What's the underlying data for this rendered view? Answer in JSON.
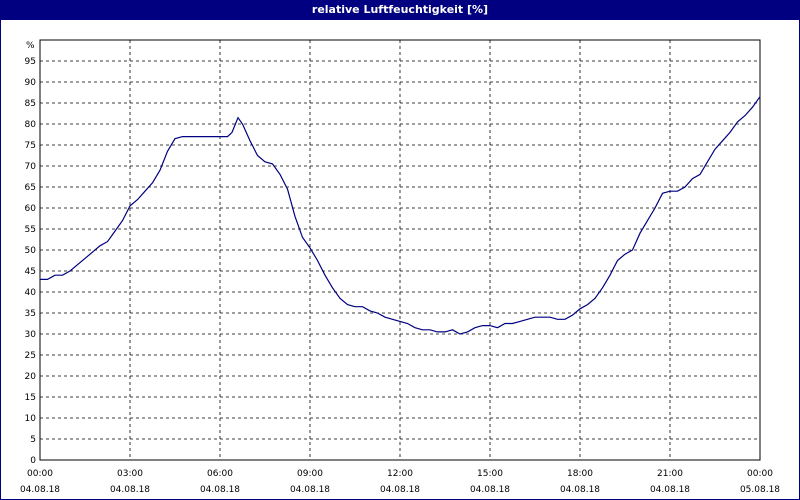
{
  "chart_data": {
    "type": "line",
    "title": "relative Luftfeuchtigkeit [%]",
    "xlabel": "",
    "ylabel": "%",
    "ylim": [
      0,
      100
    ],
    "xlim": [
      0,
      24
    ],
    "grid": true,
    "line_color": "#000080",
    "y_ticks": [
      "0",
      "5",
      "10",
      "15",
      "20",
      "25",
      "30",
      "35",
      "40",
      "45",
      "50",
      "55",
      "60",
      "65",
      "70",
      "75",
      "80",
      "85",
      "90",
      "95"
    ],
    "x_ticks": [
      {
        "time": "00:00",
        "date": "04.08.18"
      },
      {
        "time": "03:00",
        "date": "04.08.18"
      },
      {
        "time": "06:00",
        "date": "04.08.18"
      },
      {
        "time": "09:00",
        "date": "04.08.18"
      },
      {
        "time": "12:00",
        "date": "04.08.18"
      },
      {
        "time": "15:00",
        "date": "04.08.18"
      },
      {
        "time": "18:00",
        "date": "04.08.18"
      },
      {
        "time": "21:00",
        "date": "04.08.18"
      },
      {
        "time": "00:00",
        "date": "05.08.18"
      }
    ],
    "series": [
      {
        "x": [
          0.0,
          0.25,
          0.5,
          0.75,
          1.0,
          1.25,
          1.5,
          1.75,
          2.0,
          2.25,
          2.5,
          2.75,
          3.0,
          3.25,
          3.5,
          3.75,
          4.0,
          4.25,
          4.5,
          4.75,
          5.0,
          5.25,
          5.5,
          5.75,
          6.0,
          6.25,
          6.4,
          6.6,
          6.75,
          7.0,
          7.25,
          7.5,
          7.75,
          8.0,
          8.25,
          8.5,
          8.75,
          9.0,
          9.25,
          9.5,
          9.75,
          10.0,
          10.25,
          10.5,
          10.75,
          11.0,
          11.25,
          11.5,
          11.75,
          12.0,
          12.25,
          12.5,
          12.75,
          13.0,
          13.25,
          13.5,
          13.75,
          14.0,
          14.25,
          14.5,
          14.75,
          15.0,
          15.25,
          15.5,
          15.75,
          16.0,
          16.25,
          16.5,
          16.75,
          17.0,
          17.25,
          17.5,
          17.75,
          18.0,
          18.25,
          18.5,
          18.75,
          19.0,
          19.25,
          19.5,
          19.75,
          20.0,
          20.25,
          20.5,
          20.75,
          21.0,
          21.25,
          21.5,
          21.75,
          22.0,
          22.25,
          22.5,
          22.75,
          23.0,
          23.25,
          23.5,
          23.75,
          24.0
        ],
        "y": [
          43,
          43,
          44,
          44,
          45,
          46.5,
          48,
          49.5,
          51,
          52,
          54.5,
          57,
          60.5,
          62,
          64,
          66,
          69,
          73.5,
          76.5,
          77,
          77,
          77,
          77,
          77,
          77,
          77,
          78,
          81.5,
          80,
          76,
          72.5,
          71,
          70.5,
          68,
          64.5,
          58,
          53,
          50.5,
          47.5,
          44,
          41,
          38.5,
          37,
          36.5,
          36.5,
          35.5,
          35,
          34,
          33.5,
          33,
          32.5,
          31.5,
          31,
          31,
          30.5,
          30.5,
          31,
          30,
          30.5,
          31.5,
          32,
          32,
          31.5,
          32.5,
          32.5,
          33,
          33.5,
          34,
          34,
          34,
          33.5,
          33.5,
          34.5,
          36,
          37,
          38.5,
          41,
          44,
          47.5,
          49,
          50,
          54,
          57,
          60,
          63.5,
          64,
          64,
          65,
          67,
          68,
          71,
          74,
          76,
          78,
          80.5,
          82,
          84,
          86.5
        ]
      }
    ]
  }
}
